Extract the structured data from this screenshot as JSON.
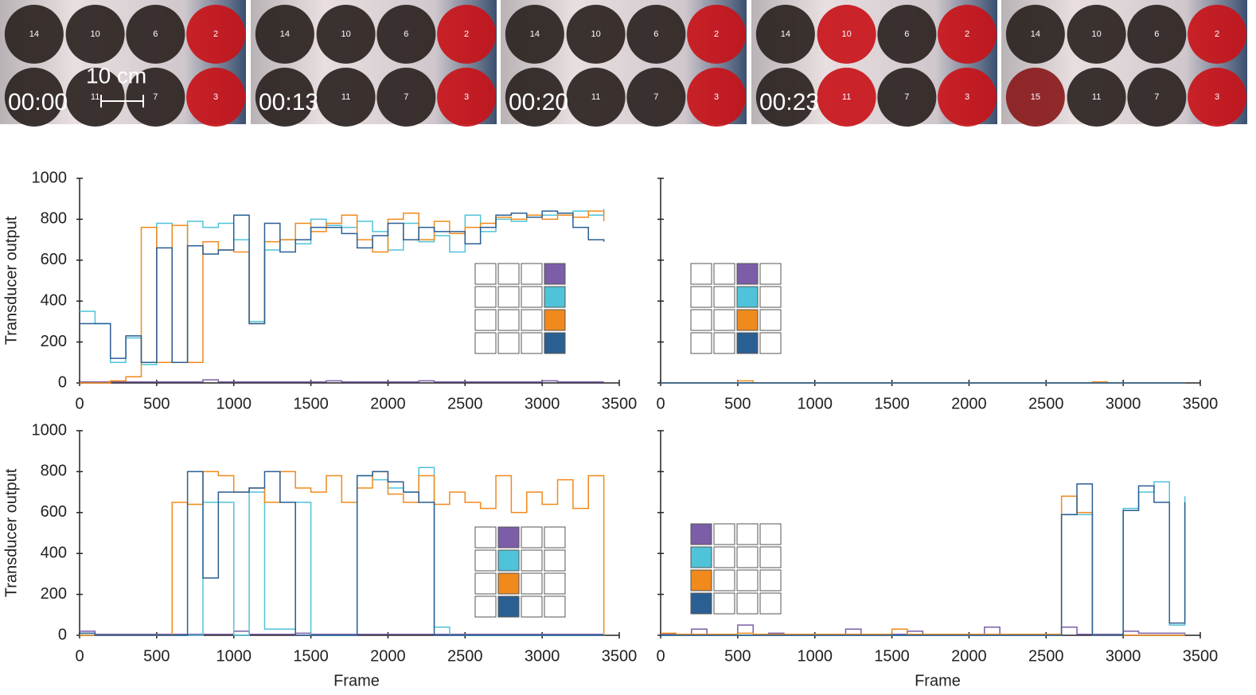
{
  "photos": [
    {
      "time": "00:00",
      "scale_label": "10 cm",
      "circles": [
        {
          "label": "14",
          "color": "#2b2321"
        },
        {
          "label": "10",
          "color": "#2b2321"
        },
        {
          "label": "6",
          "color": "#2b2321"
        },
        {
          "label": "2",
          "color": "#c8141a"
        },
        {
          "label": null,
          "color": "#2b2321"
        },
        {
          "label": "11",
          "color": "#2b2321"
        },
        {
          "label": "7",
          "color": "#2b2321"
        },
        {
          "label": "3",
          "color": "#c8141a"
        }
      ]
    },
    {
      "time": "00:13",
      "circles": [
        {
          "label": "14",
          "color": "#2b2321"
        },
        {
          "label": "10",
          "color": "#2b2321"
        },
        {
          "label": "6",
          "color": "#2b2321"
        },
        {
          "label": "2",
          "color": "#c8141a"
        },
        {
          "label": null,
          "color": "#2b2321"
        },
        {
          "label": "11",
          "color": "#2b2321"
        },
        {
          "label": "7",
          "color": "#2b2321"
        },
        {
          "label": "3",
          "color": "#c8141a"
        }
      ]
    },
    {
      "time": "00:20",
      "circles": [
        {
          "label": "14",
          "color": "#2b2321"
        },
        {
          "label": "10",
          "color": "#2b2321"
        },
        {
          "label": "6",
          "color": "#2b2321"
        },
        {
          "label": "2",
          "color": "#c8141a"
        },
        {
          "label": null,
          "color": "#2b2321"
        },
        {
          "label": "11",
          "color": "#2b2321"
        },
        {
          "label": "7",
          "color": "#2b2321"
        },
        {
          "label": "3",
          "color": "#c8141a"
        }
      ]
    },
    {
      "time": "00:23",
      "circles": [
        {
          "label": "14",
          "color": "#2b2321"
        },
        {
          "label": "10",
          "color": "#c8141a"
        },
        {
          "label": "6",
          "color": "#2b2321"
        },
        {
          "label": "2",
          "color": "#c8141a"
        },
        {
          "label": null,
          "color": "#2b2321"
        },
        {
          "label": "11",
          "color": "#c8141a"
        },
        {
          "label": "7",
          "color": "#2b2321"
        },
        {
          "label": "3",
          "color": "#c8141a"
        }
      ]
    },
    {
      "circles": [
        {
          "label": "14",
          "color": "#2b2321"
        },
        {
          "label": "10",
          "color": "#2b2321"
        },
        {
          "label": "6",
          "color": "#2b2321"
        },
        {
          "label": "2",
          "color": "#c8141a"
        },
        {
          "label": "15",
          "color": "#8a1a1c"
        },
        {
          "label": "11",
          "color": "#2b2321"
        },
        {
          "label": "7",
          "color": "#2b2321"
        },
        {
          "label": "3",
          "color": "#c8141a"
        }
      ]
    }
  ],
  "chart_data": [
    {
      "type": "line",
      "step": true,
      "ylabel": "Transducer output",
      "ytick_labels": true,
      "highlight_column": 3,
      "xlim": [
        0,
        3500
      ],
      "xticks": [
        0,
        500,
        1000,
        1500,
        2000,
        2500,
        3000,
        3500
      ],
      "ylim": [
        0,
        1000
      ],
      "yticks": [
        0,
        200,
        400,
        600,
        800,
        1000
      ],
      "x": [
        0,
        100,
        200,
        300,
        400,
        500,
        600,
        700,
        800,
        900,
        1000,
        1100,
        1200,
        1300,
        1400,
        1500,
        1600,
        1700,
        1800,
        1900,
        2000,
        2100,
        2200,
        2300,
        2400,
        2500,
        2600,
        2700,
        2800,
        2900,
        3000,
        3100,
        3200,
        3300,
        3400
      ],
      "series": [
        {
          "color": "#7b5ea7",
          "values": [
            5,
            5,
            5,
            5,
            5,
            5,
            5,
            5,
            15,
            5,
            5,
            5,
            5,
            5,
            5,
            5,
            10,
            5,
            5,
            5,
            5,
            5,
            10,
            5,
            5,
            5,
            5,
            5,
            5,
            5,
            10,
            5,
            5,
            5,
            5
          ]
        },
        {
          "color": "#4fc3d9",
          "values": [
            350,
            290,
            100,
            220,
            90,
            780,
            100,
            790,
            760,
            780,
            700,
            300,
            650,
            700,
            680,
            800,
            770,
            760,
            790,
            740,
            650,
            780,
            690,
            720,
            640,
            820,
            740,
            800,
            790,
            820,
            820,
            830,
            840,
            820,
            850
          ]
        },
        {
          "color": "#f08a1c",
          "values": [
            0,
            0,
            10,
            30,
            760,
            100,
            770,
            100,
            690,
            650,
            640,
            290,
            690,
            700,
            780,
            740,
            780,
            820,
            700,
            640,
            800,
            830,
            700,
            790,
            730,
            760,
            780,
            810,
            800,
            820,
            800,
            820,
            810,
            840,
            790
          ]
        },
        {
          "color": "#2a5f93",
          "values": [
            290,
            290,
            120,
            230,
            100,
            660,
            100,
            670,
            630,
            650,
            820,
            290,
            780,
            640,
            700,
            760,
            760,
            730,
            660,
            720,
            780,
            700,
            760,
            740,
            740,
            680,
            760,
            820,
            830,
            810,
            840,
            830,
            760,
            700,
            690
          ]
        }
      ]
    },
    {
      "type": "line",
      "step": true,
      "ytick_labels": false,
      "highlight_column": 2,
      "xlim": [
        0,
        3500
      ],
      "xticks": [
        0,
        500,
        1000,
        1500,
        2000,
        2500,
        3000,
        3500
      ],
      "ylim": [
        0,
        1000
      ],
      "yticks": [
        0,
        200,
        400,
        600,
        800,
        1000
      ],
      "x": [
        0,
        100,
        200,
        300,
        400,
        500,
        600,
        700,
        800,
        900,
        1000,
        1100,
        1200,
        1300,
        1400,
        1500,
        1600,
        1700,
        1800,
        1900,
        2000,
        2100,
        2200,
        2300,
        2400,
        2500,
        2600,
        2700,
        2800,
        2900,
        3000,
        3100,
        3200,
        3300,
        3400
      ],
      "series": [
        {
          "color": "#7b5ea7",
          "values": [
            0,
            0,
            0,
            0,
            0,
            0,
            0,
            0,
            0,
            0,
            0,
            0,
            0,
            0,
            0,
            0,
            0,
            0,
            0,
            0,
            0,
            0,
            0,
            0,
            0,
            0,
            0,
            0,
            0,
            0,
            0,
            0,
            0,
            0,
            0
          ]
        },
        {
          "color": "#4fc3d9",
          "values": [
            0,
            0,
            0,
            0,
            0,
            0,
            0,
            0,
            0,
            0,
            0,
            0,
            0,
            0,
            0,
            0,
            0,
            0,
            0,
            0,
            0,
            0,
            0,
            0,
            0,
            0,
            0,
            0,
            0,
            0,
            0,
            0,
            0,
            0,
            0
          ]
        },
        {
          "color": "#f08a1c",
          "values": [
            0,
            0,
            0,
            0,
            0,
            10,
            0,
            0,
            0,
            0,
            0,
            0,
            0,
            0,
            0,
            0,
            0,
            0,
            0,
            0,
            0,
            0,
            0,
            0,
            0,
            0,
            0,
            0,
            5,
            0,
            0,
            0,
            0,
            0,
            0
          ]
        },
        {
          "color": "#2a5f93",
          "values": [
            0,
            0,
            0,
            0,
            0,
            0,
            0,
            0,
            0,
            0,
            0,
            0,
            0,
            0,
            0,
            0,
            0,
            0,
            0,
            0,
            0,
            0,
            0,
            0,
            0,
            0,
            0,
            0,
            0,
            0,
            0,
            0,
            0,
            0,
            0
          ]
        }
      ]
    },
    {
      "type": "line",
      "step": true,
      "ylabel": "Transducer output",
      "xlabel": "Frame",
      "ytick_labels": true,
      "highlight_column": 1,
      "xlim": [
        0,
        3500
      ],
      "xticks": [
        0,
        500,
        1000,
        1500,
        2000,
        2500,
        3000,
        3500
      ],
      "ylim": [
        0,
        1000
      ],
      "yticks": [
        0,
        200,
        400,
        600,
        800,
        1000
      ],
      "x": [
        0,
        100,
        200,
        300,
        400,
        500,
        600,
        700,
        800,
        900,
        1000,
        1100,
        1200,
        1300,
        1400,
        1500,
        1600,
        1700,
        1800,
        1900,
        2000,
        2100,
        2200,
        2300,
        2400,
        2500,
        2600,
        2700,
        2800,
        2900,
        3000,
        3100,
        3200,
        3300,
        3400
      ],
      "series": [
        {
          "color": "#7b5ea7",
          "values": [
            20,
            5,
            5,
            5,
            5,
            5,
            5,
            5,
            5,
            5,
            20,
            5,
            5,
            5,
            10,
            5,
            5,
            5,
            5,
            5,
            5,
            5,
            5,
            5,
            5,
            5,
            5,
            5,
            5,
            5,
            5,
            5,
            5,
            5,
            5
          ]
        },
        {
          "color": "#4fc3d9",
          "values": [
            0,
            0,
            0,
            0,
            0,
            0,
            0,
            0,
            650,
            650,
            0,
            700,
            30,
            30,
            650,
            0,
            0,
            0,
            780,
            760,
            720,
            700,
            820,
            40,
            0,
            0,
            0,
            0,
            0,
            0,
            0,
            0,
            0,
            0,
            0
          ]
        },
        {
          "color": "#f08a1c",
          "values": [
            0,
            0,
            0,
            0,
            0,
            0,
            650,
            640,
            800,
            780,
            700,
            720,
            650,
            800,
            720,
            700,
            780,
            650,
            720,
            800,
            690,
            650,
            780,
            640,
            700,
            650,
            620,
            780,
            600,
            700,
            640,
            760,
            620,
            780,
            0
          ]
        },
        {
          "color": "#2a5f93",
          "values": [
            10,
            0,
            0,
            0,
            0,
            0,
            0,
            800,
            280,
            700,
            700,
            720,
            800,
            650,
            0,
            0,
            0,
            0,
            780,
            800,
            750,
            700,
            650,
            0,
            0,
            0,
            0,
            0,
            0,
            0,
            0,
            0,
            0,
            0,
            0
          ]
        }
      ]
    },
    {
      "type": "line",
      "step": true,
      "xlabel": "Frame",
      "ytick_labels": false,
      "highlight_column": 0,
      "xlim": [
        0,
        3500
      ],
      "xticks": [
        0,
        500,
        1000,
        1500,
        2000,
        2500,
        3000,
        3500
      ],
      "ylim": [
        0,
        1000
      ],
      "yticks": [
        0,
        200,
        400,
        600,
        800,
        1000
      ],
      "x": [
        0,
        100,
        200,
        300,
        400,
        500,
        600,
        700,
        800,
        900,
        1000,
        1100,
        1200,
        1300,
        1400,
        1500,
        1600,
        1700,
        1800,
        1900,
        2000,
        2100,
        2200,
        2300,
        2400,
        2500,
        2600,
        2700,
        2800,
        2900,
        3000,
        3100,
        3200,
        3300,
        3400
      ],
      "series": [
        {
          "color": "#7b5ea7",
          "values": [
            5,
            5,
            30,
            5,
            5,
            50,
            5,
            10,
            5,
            5,
            5,
            5,
            30,
            5,
            5,
            5,
            20,
            5,
            5,
            5,
            5,
            40,
            5,
            5,
            5,
            5,
            40,
            5,
            5,
            5,
            20,
            10,
            10,
            10,
            5
          ]
        },
        {
          "color": "#4fc3d9",
          "values": [
            0,
            0,
            0,
            0,
            0,
            0,
            0,
            0,
            0,
            0,
            0,
            0,
            0,
            0,
            0,
            0,
            0,
            0,
            0,
            0,
            0,
            0,
            0,
            0,
            0,
            0,
            590,
            590,
            0,
            0,
            620,
            700,
            750,
            50,
            680
          ]
        },
        {
          "color": "#f08a1c",
          "values": [
            10,
            5,
            5,
            5,
            5,
            10,
            5,
            5,
            5,
            5,
            5,
            5,
            5,
            5,
            5,
            30,
            5,
            5,
            5,
            5,
            5,
            5,
            5,
            5,
            5,
            5,
            680,
            600,
            0,
            0,
            0,
            0,
            0,
            0,
            0
          ]
        },
        {
          "color": "#2a5f93",
          "values": [
            0,
            0,
            0,
            0,
            0,
            0,
            0,
            0,
            0,
            0,
            0,
            0,
            0,
            0,
            0,
            0,
            0,
            0,
            0,
            0,
            0,
            0,
            0,
            0,
            0,
            0,
            590,
            740,
            0,
            0,
            610,
            730,
            650,
            60,
            650
          ]
        }
      ]
    }
  ]
}
